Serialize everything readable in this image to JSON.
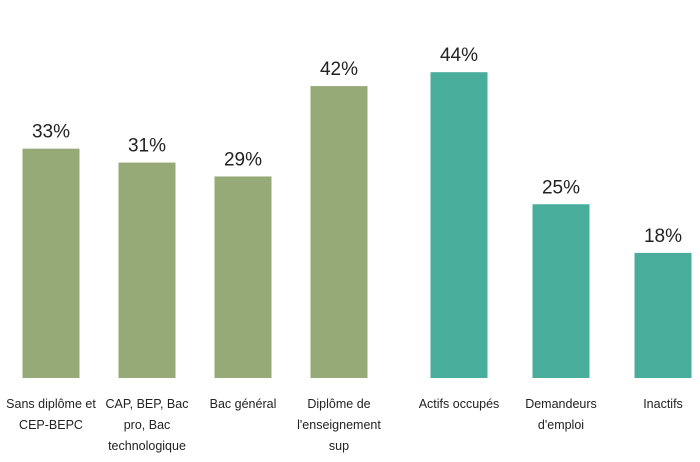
{
  "chart_data": {
    "type": "bar",
    "title": "",
    "xlabel": "",
    "ylabel": "",
    "ylim": [
      0,
      50
    ],
    "grid": false,
    "legend": "none",
    "unit": "%",
    "categories": [
      [
        "Sans diplôme et",
        "CEP-BEPC"
      ],
      [
        "CAP, BEP, Bac",
        "pro, Bac",
        "technologique"
      ],
      [
        "Bac général"
      ],
      [
        "Diplôme de",
        "l'enseignement",
        "sup"
      ],
      [
        "Actifs occupés"
      ],
      [
        "Demandeurs",
        "d'emploi"
      ],
      [
        "Inactifs"
      ]
    ],
    "values": [
      33,
      31,
      29,
      42,
      44,
      25,
      18
    ],
    "value_labels": [
      "33%",
      "31%",
      "29%",
      "42%",
      "44%",
      "25%",
      "18%"
    ],
    "bar_colors": [
      "#96aa77",
      "#96aa77",
      "#96aa77",
      "#96aa77",
      "#49ad9b",
      "#49ad9b",
      "#49ad9b"
    ]
  }
}
